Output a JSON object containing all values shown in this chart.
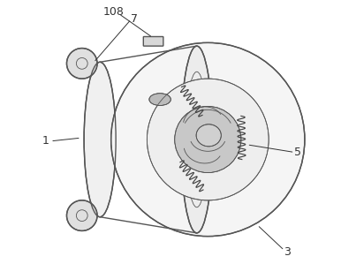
{
  "background_color": "#ffffff",
  "line_color": "#555555",
  "label_color": "#333333",
  "fig_width": 3.86,
  "fig_height": 3.16,
  "dpi": 100,
  "label_font_size": 9
}
